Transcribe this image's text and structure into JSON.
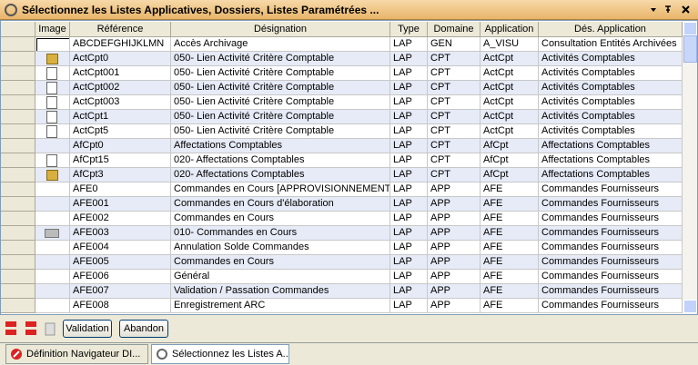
{
  "window": {
    "title": "Sélectionnez les Listes Applicatives, Dossiers, Listes Paramétrées ..."
  },
  "table": {
    "columns": [
      "Image",
      "Référence",
      "Désignation",
      "Type",
      "Domaine",
      "Application",
      "Dés. Application"
    ],
    "rows": [
      [
        "ABCDEFGHIJKLMN",
        "Accès Archivage",
        "LAP",
        "GEN",
        "A_VISU",
        "Consultation Entités Archivées"
      ],
      [
        "ActCpt0",
        "050- Lien Activité Critère Comptable",
        "LAP",
        "CPT",
        "ActCpt",
        "Activités Comptables"
      ],
      [
        "ActCpt001",
        "050- Lien Activité Critère Comptable",
        "LAP",
        "CPT",
        "ActCpt",
        "Activités Comptables"
      ],
      [
        "ActCpt002",
        "050- Lien Activité Critère Comptable",
        "LAP",
        "CPT",
        "ActCpt",
        "Activités Comptables"
      ],
      [
        "ActCpt003",
        "050- Lien Activité Critère Comptable",
        "LAP",
        "CPT",
        "ActCpt",
        "Activités Comptables"
      ],
      [
        "ActCpt1",
        "050- Lien Activité Critère Comptable",
        "LAP",
        "CPT",
        "ActCpt",
        "Activités Comptables"
      ],
      [
        "ActCpt5",
        "050- Lien Activité Critère Comptable",
        "LAP",
        "CPT",
        "ActCpt",
        "Activités Comptables"
      ],
      [
        "AfCpt0",
        "Affectations Comptables",
        "LAP",
        "CPT",
        "AfCpt",
        "Affectations Comptables"
      ],
      [
        "AfCpt15",
        "020- Affectations Comptables",
        "LAP",
        "CPT",
        "AfCpt",
        "Affectations Comptables"
      ],
      [
        "AfCpt3",
        "020- Affectations Comptables",
        "LAP",
        "CPT",
        "AfCpt",
        "Affectations Comptables"
      ],
      [
        "AFE0",
        "Commandes en Cours [APPROVISIONNEMENT]",
        "LAP",
        "APP",
        "AFE",
        "Commandes Fournisseurs"
      ],
      [
        "AFE001",
        "Commandes en Cours d'élaboration",
        "LAP",
        "APP",
        "AFE",
        "Commandes Fournisseurs"
      ],
      [
        "AFE002",
        "Commandes en Cours",
        "LAP",
        "APP",
        "AFE",
        "Commandes Fournisseurs"
      ],
      [
        "AFE003",
        "010- Commandes en Cours",
        "LAP",
        "APP",
        "AFE",
        "Commandes Fournisseurs"
      ],
      [
        "AFE004",
        "Annulation Solde Commandes",
        "LAP",
        "APP",
        "AFE",
        "Commandes Fournisseurs"
      ],
      [
        "AFE005",
        "Commandes en Cours",
        "LAP",
        "APP",
        "AFE",
        "Commandes Fournisseurs"
      ],
      [
        "AFE006",
        "Général",
        "LAP",
        "APP",
        "AFE",
        "Commandes Fournisseurs"
      ],
      [
        "AFE007",
        "Validation / Passation Commandes",
        "LAP",
        "APP",
        "AFE",
        "Commandes Fournisseurs"
      ],
      [
        "AFE008",
        "Enregistrement ARC",
        "LAP",
        "APP",
        "AFE",
        "Commandes Fournisseurs"
      ]
    ]
  },
  "buttons": [
    "Validation",
    "Abandon"
  ],
  "tabs": [
    "Définition Navigateur DI...",
    "Sélectionnez les Listes A..."
  ]
}
